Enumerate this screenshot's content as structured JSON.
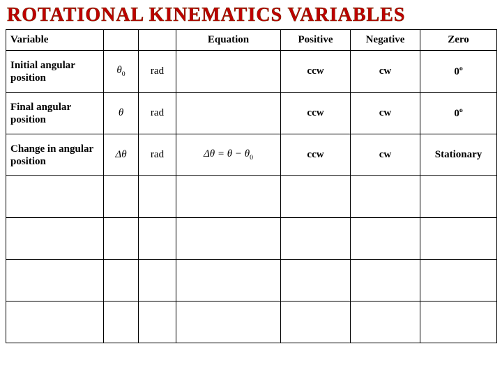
{
  "title": "ROTATIONAL KINEMATICS VARIABLES",
  "title_color": "#c00000",
  "title_fontsize": 28,
  "border_color": "#000000",
  "background_color": "#ffffff",
  "columns": {
    "variable": "Variable",
    "equation": "Equation",
    "positive": "Positive",
    "negative": "Negative",
    "zero": "Zero"
  },
  "rows": [
    {
      "variable": "Initial angular position",
      "symbol_html": "θ<span class=\"sub\">0</span>",
      "unit": "rad",
      "equation_html": "",
      "positive": "ccw",
      "negative": "cw",
      "zero_html": "0<span class=\"sup\">o</span>"
    },
    {
      "variable": "Final angular position",
      "symbol_html": "θ",
      "unit": "rad",
      "equation_html": "",
      "positive": "ccw",
      "negative": "cw",
      "zero_html": "0<span class=\"sup\">o</span>"
    },
    {
      "variable": "Change in angular position",
      "symbol_html": "Δθ",
      "unit": "rad",
      "equation_html": "Δ<span style=\"font-style:italic\">θ</span> = <span style=\"font-style:italic\">θ</span> − <span style=\"font-style:italic\">θ</span><span class=\"sub\">0</span>",
      "positive": "ccw",
      "negative": "cw",
      "zero_html": "Stationary"
    },
    {
      "variable": "",
      "symbol_html": "",
      "unit": "",
      "equation_html": "",
      "positive": "",
      "negative": "",
      "zero_html": ""
    },
    {
      "variable": "",
      "symbol_html": "",
      "unit": "",
      "equation_html": "",
      "positive": "",
      "negative": "",
      "zero_html": ""
    },
    {
      "variable": "",
      "symbol_html": "",
      "unit": "",
      "equation_html": "",
      "positive": "",
      "negative": "",
      "zero_html": ""
    },
    {
      "variable": "",
      "symbol_html": "",
      "unit": "",
      "equation_html": "",
      "positive": "",
      "negative": "",
      "zero_html": ""
    }
  ]
}
